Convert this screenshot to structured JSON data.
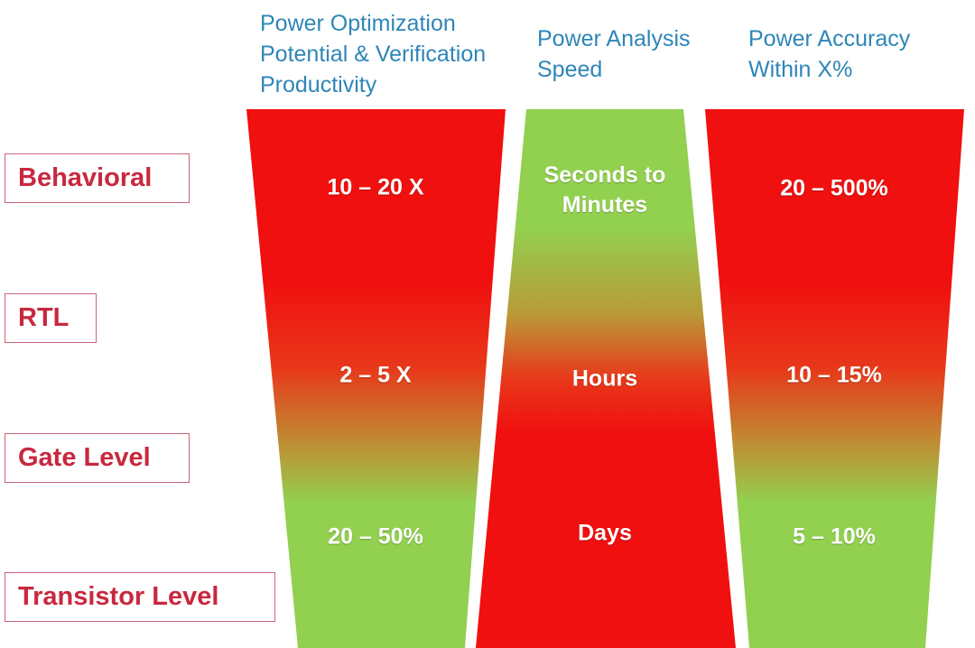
{
  "headers": {
    "optimization": "Power Optimization\nPotential & Verification\nProductivity",
    "speed": "Power Analysis\nSpeed",
    "accuracy": "Power Accuracy\nWithin X%"
  },
  "levels": {
    "behavioral": "Behavioral",
    "rtl": "RTL",
    "gate": "Gate Level",
    "transistor": "Transistor Level"
  },
  "columns": {
    "optimization": {
      "behavioral": "10 – 20 X",
      "rtl": "2 – 5 X",
      "gate": "20 – 50%"
    },
    "speed": {
      "behavioral": "Seconds to\nMinutes",
      "rtl": "Hours",
      "gate": "Days"
    },
    "accuracy": {
      "behavioral": "20 – 500%",
      "rtl": "10 – 15%",
      "gate": "5 – 10%"
    }
  },
  "colors": {
    "red": "#F0100F",
    "green": "#92D050",
    "header_text": "#2E86B7",
    "level_text": "#C8283F"
  }
}
